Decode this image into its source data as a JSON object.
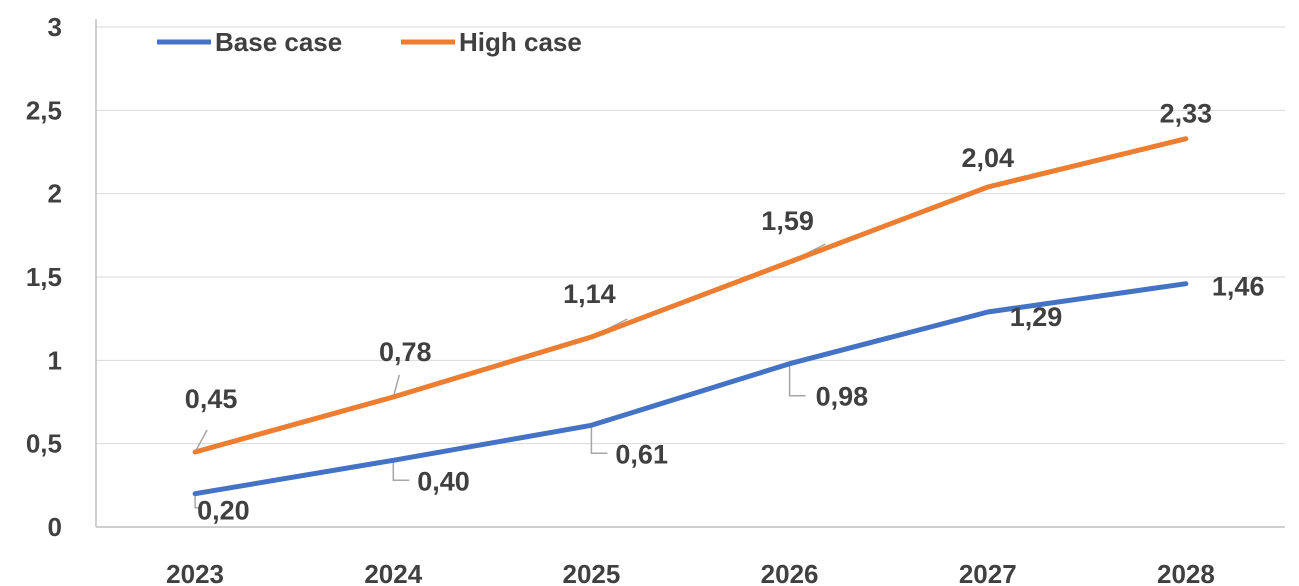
{
  "chart_data": {
    "type": "line",
    "categories": [
      "2023",
      "2024",
      "2025",
      "2026",
      "2027",
      "2028"
    ],
    "series": [
      {
        "name": "Base case",
        "color": "#4472c4",
        "values": [
          0.2,
          0.4,
          0.61,
          0.98,
          1.29,
          1.46
        ],
        "labels": [
          "0,20",
          "0,40",
          "0,61",
          "0,98",
          "1,29",
          "1,46"
        ]
      },
      {
        "name": "High case",
        "color": "#ed7d31",
        "values": [
          0.45,
          0.78,
          1.14,
          1.59,
          2.04,
          2.33
        ],
        "labels": [
          "0,45",
          "0,78",
          "1,14",
          "1,59",
          "2,04",
          "2,33"
        ]
      }
    ],
    "ylim": [
      0,
      3
    ],
    "yticks": [
      0,
      0.5,
      1,
      1.5,
      2,
      2.5,
      3
    ],
    "ytick_labels": [
      "0",
      "0,5",
      "1",
      "1,5",
      "2",
      "2,5",
      "3"
    ],
    "grid": true,
    "legend_position": "top-left"
  }
}
